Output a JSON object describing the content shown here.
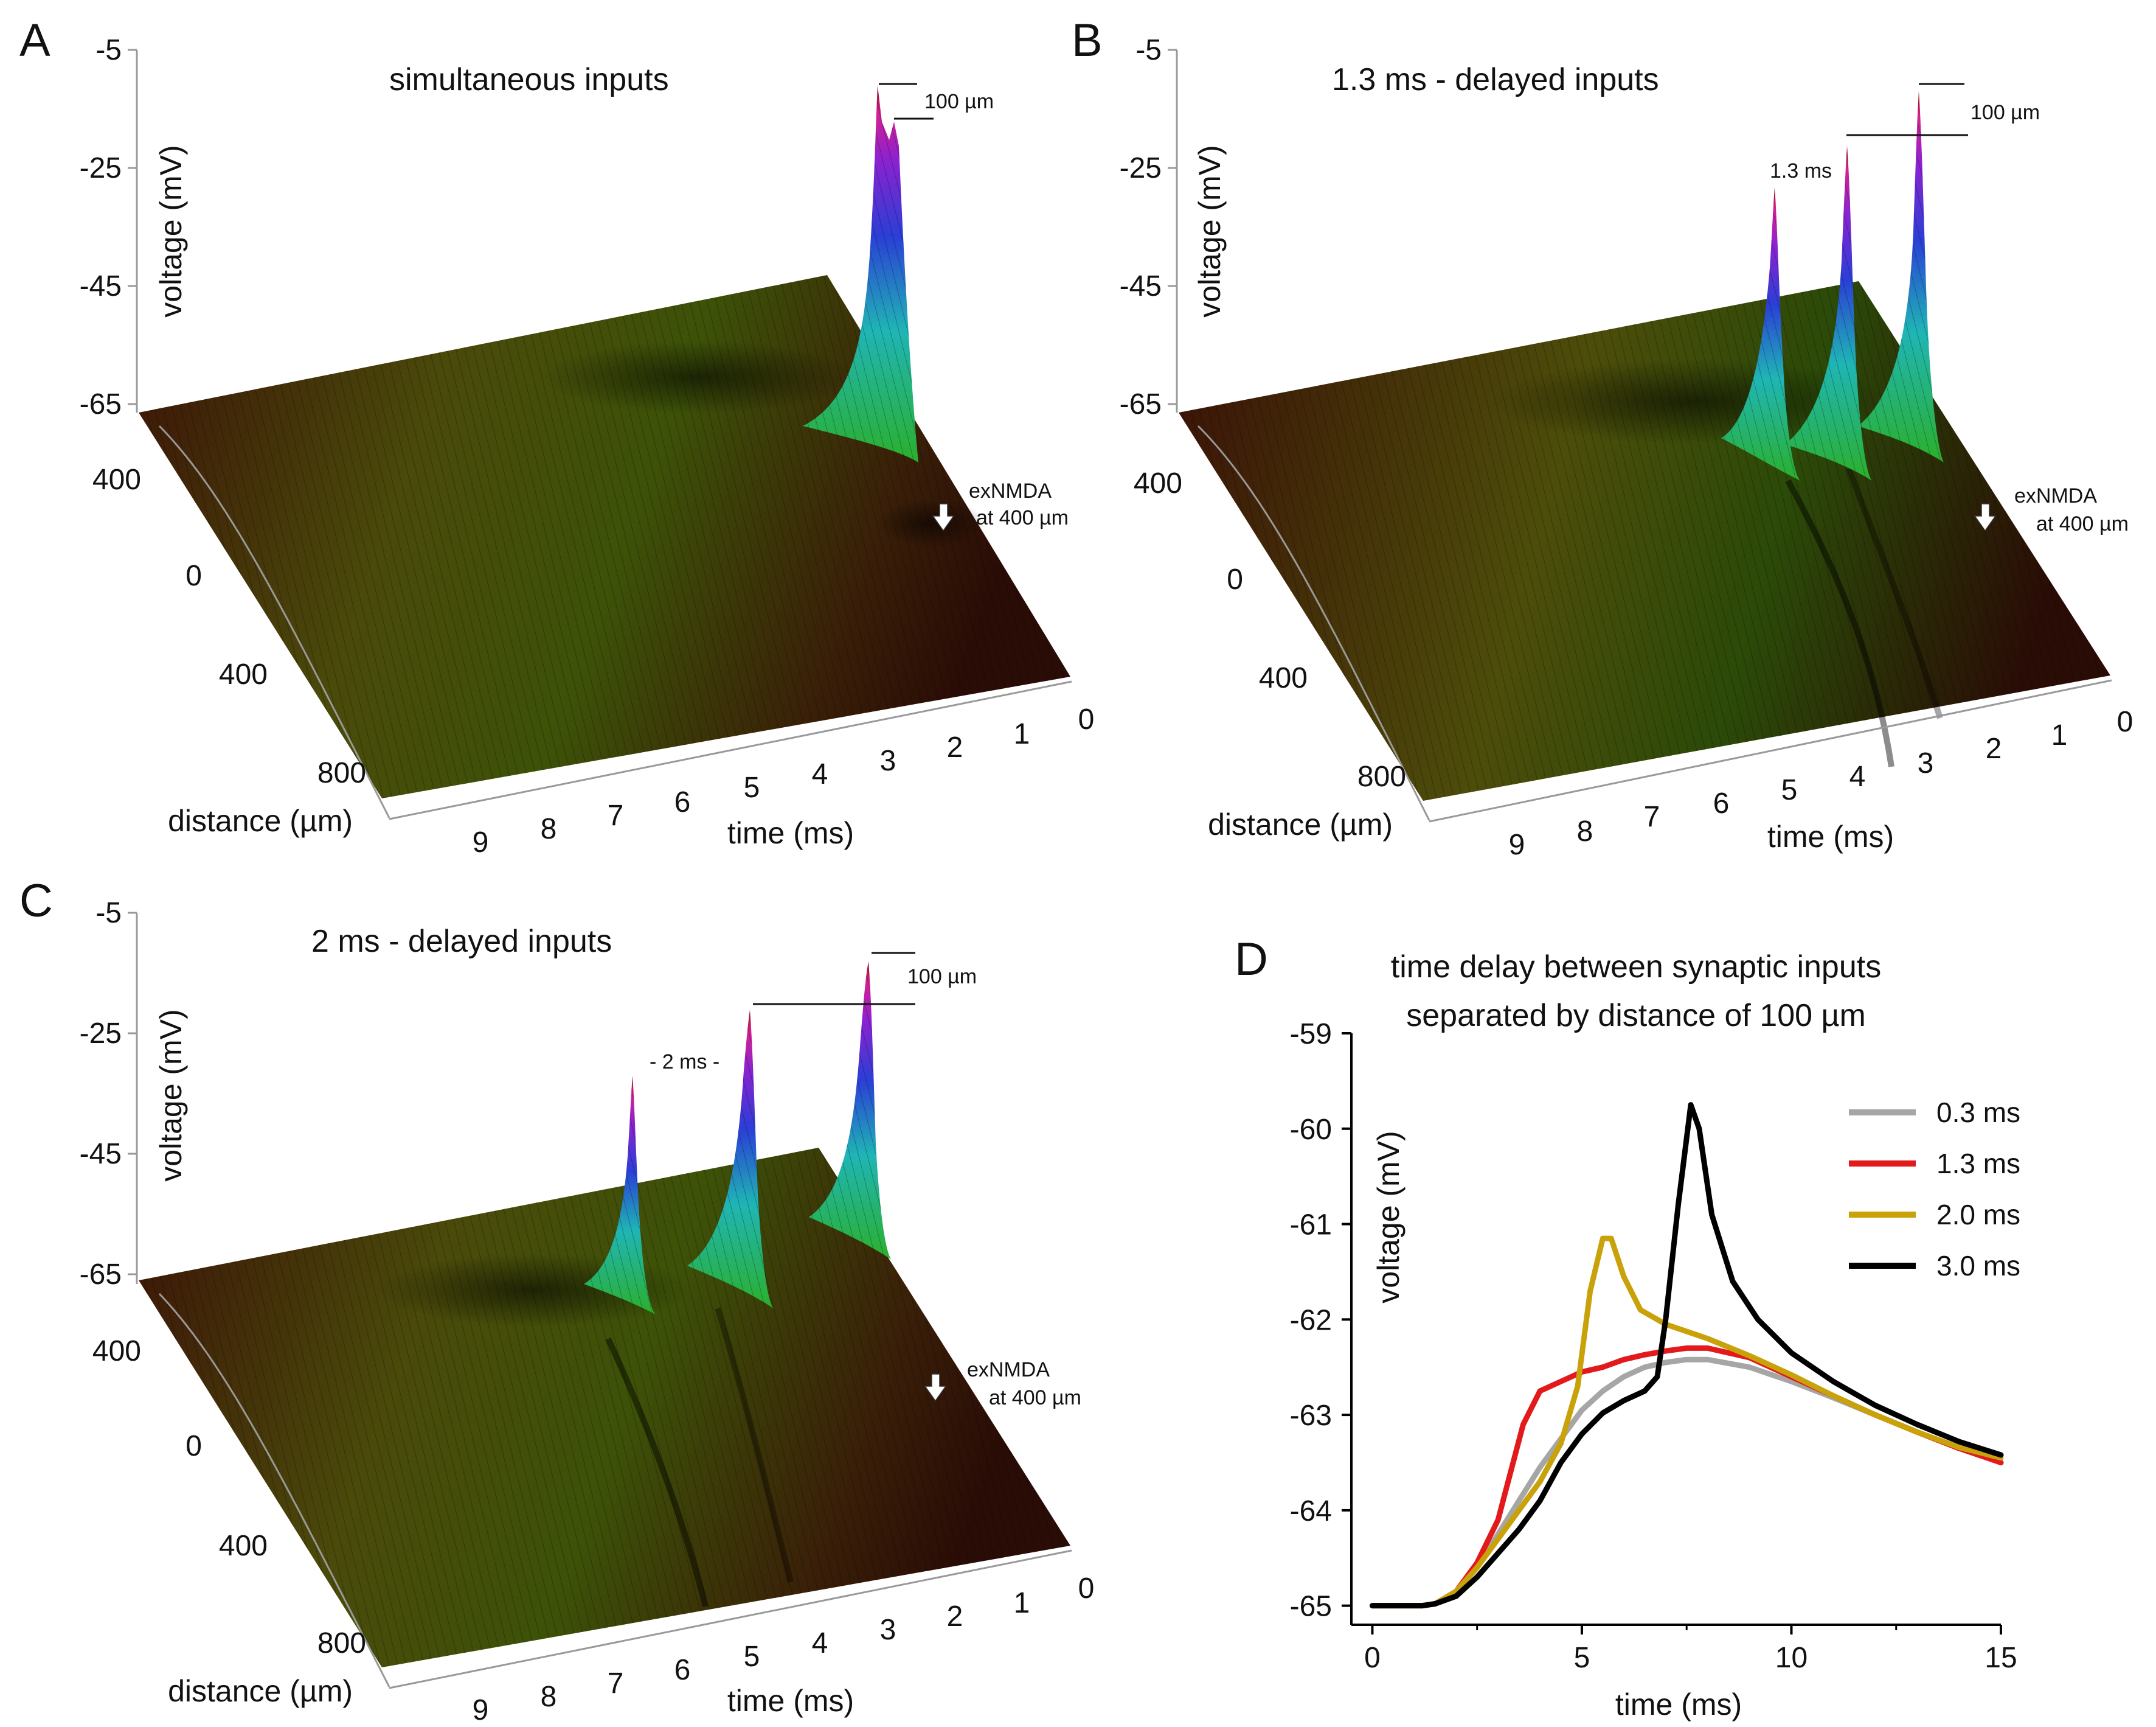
{
  "panels": [
    {
      "letter": "A",
      "title": "simultaneous inputs",
      "voltage_ticks": [
        "-5",
        "-25",
        "-45",
        "-65"
      ],
      "voltage_label": "voltage (mV)",
      "distance_ticks": [
        "400",
        "0",
        "400",
        "800"
      ],
      "distance_label": "distance (µm)",
      "time_ticks": [
        "9",
        "8",
        "7",
        "6",
        "5",
        "4",
        "3",
        "2",
        "1",
        "0"
      ],
      "time_label": "time (ms)",
      "scale_label": "100 µm",
      "delay_label": "",
      "arrow_label_1": "exNMDA",
      "arrow_label_2": "at 400 µm",
      "peaks_ms": [
        0.3
      ]
    },
    {
      "letter": "B",
      "title": "1.3 ms - delayed inputs",
      "voltage_ticks": [
        "-5",
        "-25",
        "-45",
        "-65"
      ],
      "voltage_label": "voltage (mV)",
      "distance_ticks": [
        "400",
        "0",
        "400",
        "800"
      ],
      "distance_label": "distance (µm)",
      "time_ticks": [
        "9",
        "8",
        "7",
        "6",
        "5",
        "4",
        "3",
        "2",
        "1",
        "0"
      ],
      "time_label": "time (ms)",
      "scale_label": "100 µm",
      "delay_label": "1.3 ms",
      "arrow_label_1": "exNMDA",
      "arrow_label_2": "at 400 µm",
      "peaks_ms": [
        1.3,
        2.6,
        3.9
      ]
    },
    {
      "letter": "C",
      "title": "2 ms - delayed inputs",
      "voltage_ticks": [
        "-5",
        "-25",
        "-45",
        "-65"
      ],
      "voltage_label": "voltage (mV)",
      "distance_ticks": [
        "400",
        "0",
        "400",
        "800"
      ],
      "distance_label": "distance (µm)",
      "time_ticks": [
        "9",
        "8",
        "7",
        "6",
        "5",
        "4",
        "3",
        "2",
        "1",
        "0"
      ],
      "time_label": "time (ms)",
      "scale_label": "100 µm",
      "delay_label": "- 2 ms -",
      "arrow_label_1": "exNMDA",
      "arrow_label_2": "at 400 µm",
      "peaks_ms": [
        2,
        4,
        6
      ]
    }
  ],
  "panel_d_letter": "D",
  "colors": {
    "gray": "#a6a6a6",
    "red": "#e31a1c",
    "gold": "#c9a20a",
    "black": "#000000"
  },
  "chart_data": {
    "type": "line",
    "title": "time delay between synaptic inputs",
    "subtitle": "separated by distance of 100 µm",
    "xlabel": "time (ms)",
    "ylabel": "voltage (mV)",
    "xlim": [
      -0.5,
      15
    ],
    "ylim": [
      -65.2,
      -59
    ],
    "x_ticks": [
      "0",
      "5",
      "10",
      "15"
    ],
    "y_ticks": [
      "-59",
      "-60",
      "-61",
      "-62",
      "-63",
      "-64",
      "-65"
    ],
    "series": [
      {
        "name": "0.3 ms",
        "color": "#a6a6a6",
        "x": [
          0,
          1.2,
          1.5,
          2,
          2.5,
          3,
          3.5,
          4,
          4.5,
          5,
          5.5,
          6,
          6.5,
          7,
          7.5,
          8,
          9,
          10,
          11,
          12,
          13,
          14,
          15
        ],
        "y": [
          -65,
          -65,
          -64.98,
          -64.85,
          -64.6,
          -64.25,
          -63.9,
          -63.55,
          -63.25,
          -62.95,
          -62.75,
          -62.6,
          -62.5,
          -62.45,
          -62.42,
          -62.42,
          -62.5,
          -62.65,
          -62.82,
          -63.0,
          -63.18,
          -63.35,
          -63.5
        ]
      },
      {
        "name": "1.3 ms",
        "color": "#e31a1c",
        "x": [
          0,
          1.2,
          1.5,
          2,
          2.5,
          3,
          3.3,
          3.6,
          4,
          4.5,
          5,
          5.5,
          6,
          6.5,
          7,
          7.5,
          8,
          9,
          10,
          11,
          12,
          13,
          14,
          15
        ],
        "y": [
          -65,
          -65,
          -64.98,
          -64.85,
          -64.55,
          -64.1,
          -63.6,
          -63.1,
          -62.75,
          -62.65,
          -62.55,
          -62.5,
          -62.42,
          -62.37,
          -62.33,
          -62.3,
          -62.3,
          -62.4,
          -62.6,
          -62.8,
          -63.0,
          -63.18,
          -63.35,
          -63.5
        ]
      },
      {
        "name": "2.0 ms",
        "color": "#c9a20a",
        "x": [
          0,
          1.2,
          1.5,
          2,
          2.5,
          3,
          3.5,
          4,
          4.5,
          4.9,
          5.2,
          5.5,
          5.7,
          6,
          6.4,
          7,
          8,
          9,
          10,
          11,
          12,
          13,
          14,
          15
        ],
        "y": [
          -65,
          -65,
          -64.98,
          -64.85,
          -64.6,
          -64.3,
          -64.0,
          -63.7,
          -63.3,
          -62.7,
          -61.7,
          -61.15,
          -61.15,
          -61.55,
          -61.9,
          -62.05,
          -62.2,
          -62.38,
          -62.58,
          -62.8,
          -63.0,
          -63.18,
          -63.34,
          -63.45
        ]
      },
      {
        "name": "3.0 ms",
        "color": "#000000",
        "x": [
          0,
          1.2,
          1.5,
          2,
          2.5,
          3,
          3.5,
          4,
          4.5,
          5,
          5.5,
          6,
          6.5,
          6.8,
          7.0,
          7.3,
          7.6,
          7.8,
          8.1,
          8.6,
          9.2,
          10,
          11,
          12,
          13,
          14,
          15
        ],
        "y": [
          -65,
          -65,
          -64.98,
          -64.9,
          -64.7,
          -64.45,
          -64.2,
          -63.9,
          -63.5,
          -63.2,
          -62.98,
          -62.85,
          -62.75,
          -62.6,
          -62.0,
          -60.8,
          -59.75,
          -60.0,
          -60.9,
          -61.6,
          -62.0,
          -62.35,
          -62.65,
          -62.9,
          -63.1,
          -63.28,
          -63.42
        ]
      }
    ]
  }
}
